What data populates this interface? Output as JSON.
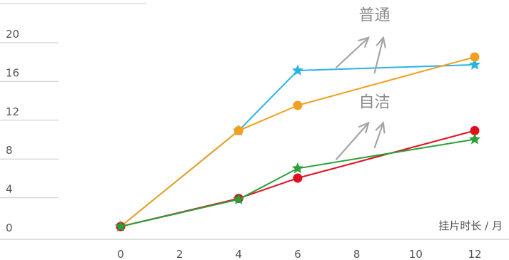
{
  "chart_data": {
    "type": "line",
    "xlabel": "挂片时长 / 月",
    "ylabel": "",
    "x_ticks": [
      0,
      2,
      4,
      6,
      8,
      10,
      12
    ],
    "y_ticks": [
      0,
      4,
      8,
      12,
      16,
      20
    ],
    "xlim": [
      0,
      12
    ],
    "ylim": [
      0,
      20
    ],
    "grid": false,
    "annotations": [
      {
        "text": "普通",
        "arrow_targets": [
          [
            7.3,
            16.4
          ],
          [
            8.6,
            15.8
          ]
        ],
        "arrow_heads": [
          [
            8.4,
            19.5
          ],
          [
            8.9,
            19.5
          ]
        ],
        "label_at": [
          8.6,
          21.3
        ]
      },
      {
        "text": "自洁",
        "arrow_targets": [
          [
            7.3,
            6.9
          ],
          [
            8.6,
            8.1
          ]
        ],
        "arrow_heads": [
          [
            8.4,
            10.7
          ],
          [
            8.9,
            10.7
          ]
        ],
        "label_at": [
          8.6,
          12.3
        ]
      }
    ],
    "series": [
      {
        "marker": "star",
        "color": "#2bb3e3",
        "x": [
          0,
          4,
          6,
          12
        ],
        "y": [
          0,
          9.9,
          16.1,
          16.7
        ]
      },
      {
        "marker": "circle",
        "color": "#f0a020",
        "x": [
          0,
          4,
          6,
          12
        ],
        "y": [
          0,
          9.9,
          12.5,
          17.5
        ]
      },
      {
        "marker": "circle",
        "color": "#e01020",
        "x": [
          0,
          4,
          6,
          12
        ],
        "y": [
          0,
          2.9,
          5.0,
          9.9
        ]
      },
      {
        "marker": "star",
        "color": "#2aa038",
        "x": [
          0,
          4,
          6,
          12
        ],
        "y": [
          0,
          2.8,
          6.0,
          9.0
        ]
      }
    ]
  }
}
